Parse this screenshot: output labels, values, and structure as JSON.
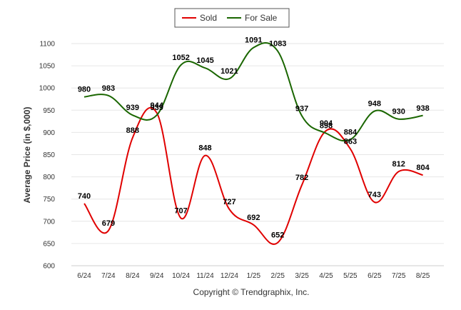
{
  "chart_data": {
    "type": "line",
    "title": "",
    "xlabel": "",
    "ylabel": "Average Price (in $,000)",
    "categories": [
      "6/24",
      "7/24",
      "8/24",
      "9/24",
      "10/24",
      "11/24",
      "12/24",
      "1/25",
      "2/25",
      "3/25",
      "4/25",
      "5/25",
      "6/25",
      "7/25",
      "8/25"
    ],
    "ylim": [
      600,
      1100
    ],
    "yticks": [
      600,
      650,
      700,
      750,
      800,
      850,
      900,
      950,
      1000,
      1050,
      1100
    ],
    "grid": true,
    "legend_position": "top-center",
    "series": [
      {
        "name": "Sold",
        "color": "#e00000",
        "values": [
          740,
          679,
          888,
          944,
          707,
          848,
          727,
          692,
          652,
          782,
          904,
          863,
          743,
          812,
          804
        ]
      },
      {
        "name": "For Sale",
        "color": "#1a6600",
        "values": [
          980,
          983,
          939,
          939,
          1052,
          1045,
          1021,
          1091,
          1083,
          937,
          898,
          884,
          948,
          930,
          938
        ]
      }
    ],
    "credit": "Copyright © Trendgraphix, Inc."
  }
}
